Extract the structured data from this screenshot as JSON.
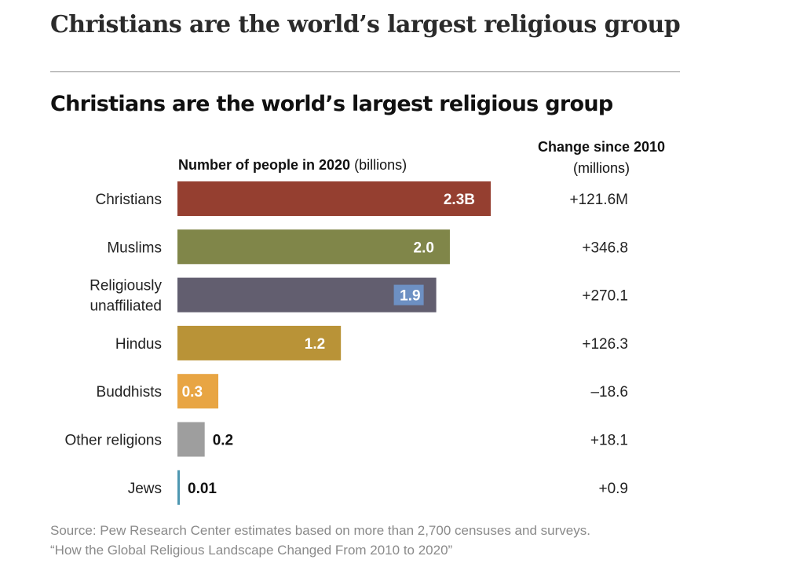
{
  "page": {
    "heading": "Christians are the world’s largest religious group"
  },
  "chart_data": {
    "type": "bar",
    "orientation": "horizontal",
    "title": "Christians are the world’s largest religious group",
    "value_header": {
      "bold": "Number of people in 2020",
      "unit": "(billions)"
    },
    "change_header": {
      "bold": "Change since 2010",
      "unit": "(millions)"
    },
    "categories": [
      "Christians",
      "Muslims",
      "Religiously unaffiliated",
      "Hindus",
      "Buddhists",
      "Other religions",
      "Jews"
    ],
    "category_lines": [
      [
        "Christians"
      ],
      [
        "Muslims"
      ],
      [
        "Religiously",
        "unaffiliated"
      ],
      [
        "Hindus"
      ],
      [
        "Buddhists"
      ],
      [
        "Other religions"
      ],
      [
        "Jews"
      ]
    ],
    "values": [
      2.3,
      2.0,
      1.9,
      1.2,
      0.3,
      0.2,
      0.01
    ],
    "value_labels": [
      "2.3B",
      "2.0",
      "1.9",
      "1.2",
      "0.3",
      "0.2",
      "0.01"
    ],
    "changes": [
      "+121.6M",
      "+346.8",
      "+270.1",
      "+126.3",
      "–18.6",
      "+18.1",
      "+0.9"
    ],
    "colors": [
      "#953f30",
      "#808649",
      "#625e6f",
      "#b99337",
      "#e8a543",
      "#9e9e9e",
      "#4e97b1"
    ],
    "label_inside": [
      true,
      true,
      true,
      true,
      true,
      false,
      false
    ],
    "label_highlight": [
      false,
      false,
      true,
      false,
      false,
      false,
      false
    ],
    "highlight_color": "#6d90c3",
    "xlim": [
      0,
      2.3
    ],
    "grid": false
  },
  "source": {
    "line1": "Source: Pew Research Center estimates based on more than 2,700 censuses and surveys.",
    "line2": "“How the Global Religious Landscape Changed From 2010 to 2020”"
  }
}
